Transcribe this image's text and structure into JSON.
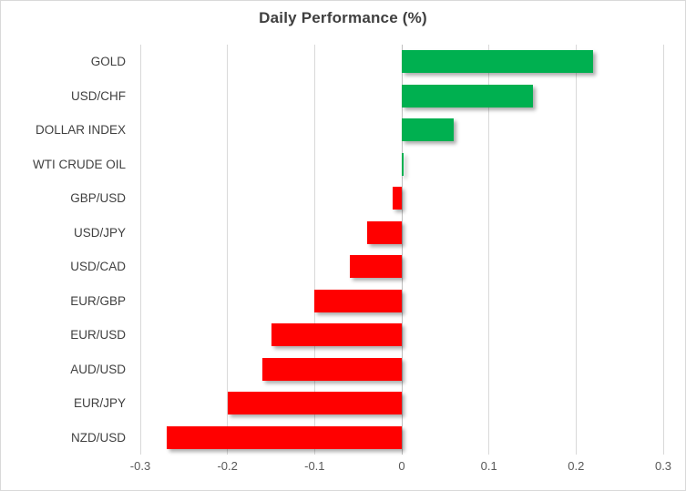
{
  "chart_data": {
    "type": "bar",
    "orientation": "horizontal",
    "title": "Daily Performance (%)",
    "categories": [
      "GOLD",
      "USD/CHF",
      "DOLLAR INDEX",
      "WTI CRUDE OIL",
      "GBP/USD",
      "USD/JPY",
      "USD/CAD",
      "EUR/GBP",
      "EUR/USD",
      "AUD/USD",
      "EUR/JPY",
      "NZD/USD"
    ],
    "values": [
      0.22,
      0.15,
      0.06,
      0.0,
      -0.01,
      -0.04,
      -0.06,
      -0.1,
      -0.15,
      -0.16,
      -0.2,
      -0.27
    ],
    "xlabel": "",
    "ylabel": "",
    "xlim": [
      -0.3,
      0.3
    ],
    "x_ticks": [
      -0.3,
      -0.2,
      -0.1,
      0,
      0.1,
      0.2,
      0.3
    ],
    "x_tick_labels": [
      "-0.3",
      "-0.2",
      "-0.1",
      "0",
      "0.1",
      "0.2",
      "0.3"
    ],
    "grid": true,
    "legend": false,
    "zero_baseline": 0,
    "colors": {
      "positive_bar": "#00B050",
      "negative_bar": "#FF0000",
      "gridline": "#D9D9D9",
      "zero_axis_line": "#BFBFBF",
      "title_text": "#3F3F3F",
      "category_text": "#404040",
      "tick_text": "#595959",
      "canvas_border": "#D9D9D9",
      "background": "#FFFFFF"
    }
  }
}
